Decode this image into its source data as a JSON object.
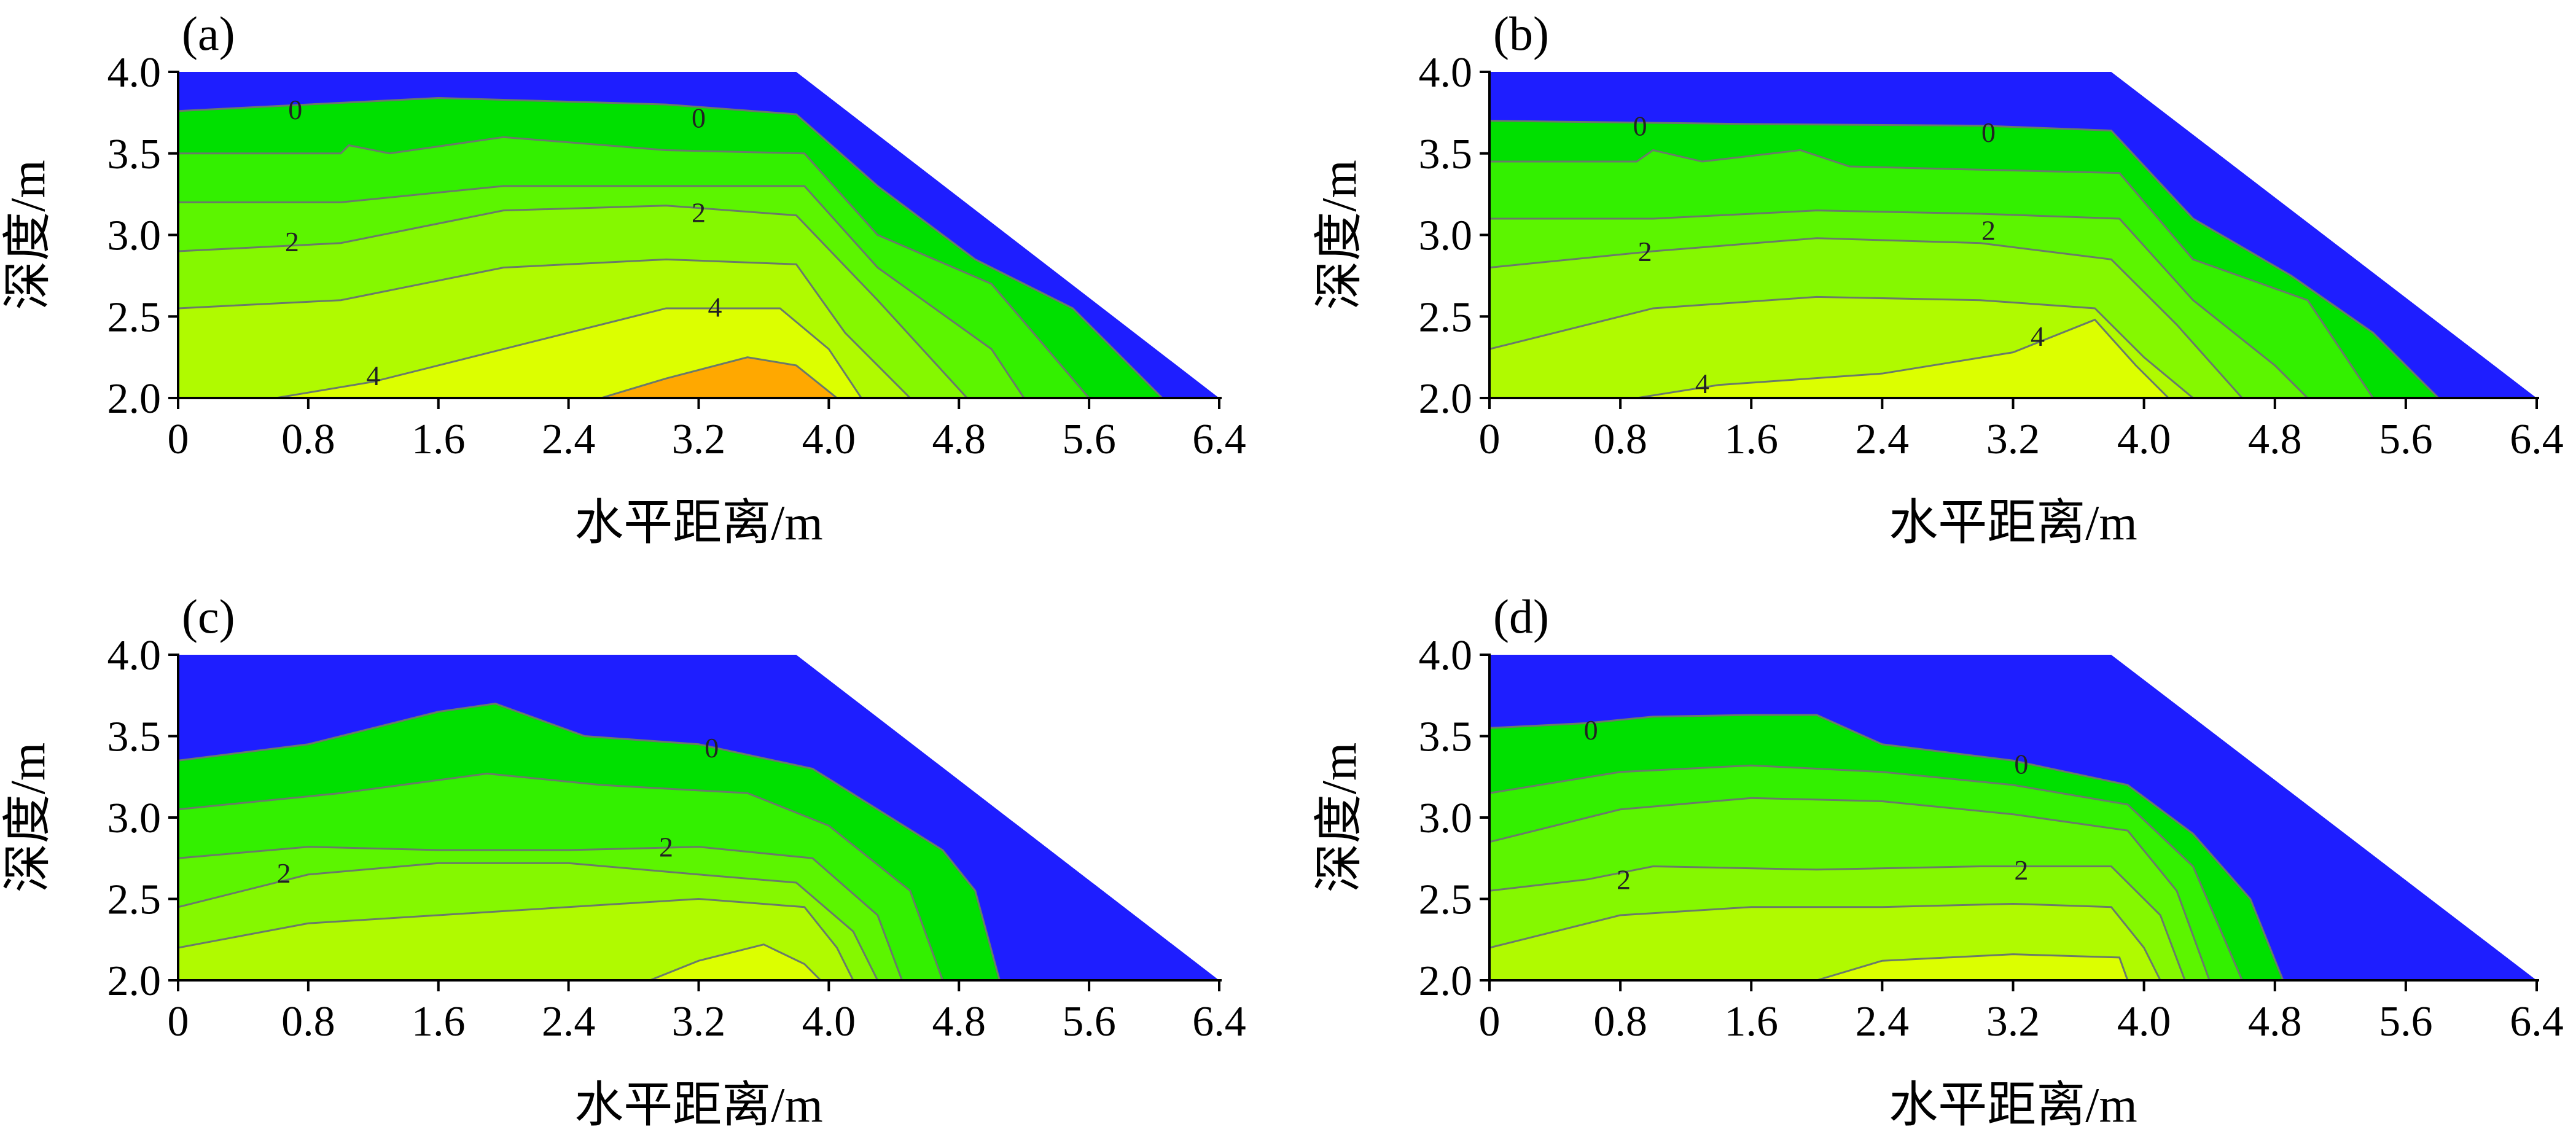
{
  "colors": {
    "band_blue": "#1e1eff",
    "band_green_1": "#00e000",
    "band_green_2": "#33f000",
    "band_green_3": "#5cf500",
    "band_green_4": "#85f800",
    "band_yellowgreen": "#b0fa00",
    "band_yellow": "#dcff00",
    "band_orange": "#ffa800",
    "contour_line": "#6a7a6a",
    "axis": "#000000"
  },
  "chart_data": [
    {
      "type": "contour",
      "panel_label": "(a)",
      "xlabel": "水平距离/m",
      "ylabel": "深度/m",
      "xlim": [
        0,
        6.4
      ],
      "ylim": [
        2.0,
        4.0
      ],
      "x_ticks": [
        "0",
        "0.8",
        "1.6",
        "2.4",
        "3.2",
        "4.0",
        "4.8",
        "5.6",
        "6.4"
      ],
      "y_ticks": [
        "2.0",
        "2.5",
        "3.0",
        "3.5",
        "4.0"
      ],
      "domain_top_edge_x": 3.8,
      "domain_bottom_edge_x": 6.4,
      "fill_bands": [
        {
          "color_key": "band_green_1",
          "line": [
            [
              0,
              3.76
            ],
            [
              1.6,
              3.84
            ],
            [
              3.0,
              3.8
            ],
            [
              3.8,
              3.74
            ],
            [
              4.3,
              3.3
            ],
            [
              4.9,
              2.85
            ],
            [
              5.5,
              2.55
            ],
            [
              6.05,
              2.0
            ]
          ]
        },
        {
          "color_key": "band_green_2",
          "line": [
            [
              0,
              3.5
            ],
            [
              1.0,
              3.5
            ],
            [
              1.05,
              3.55
            ],
            [
              1.3,
              3.5
            ],
            [
              2.0,
              3.6
            ],
            [
              3.0,
              3.52
            ],
            [
              3.85,
              3.5
            ],
            [
              4.3,
              3.0
            ],
            [
              5.0,
              2.7
            ],
            [
              5.6,
              2.0
            ]
          ]
        },
        {
          "color_key": "band_green_3",
          "line": [
            [
              0,
              3.2
            ],
            [
              1.0,
              3.2
            ],
            [
              2.0,
              3.3
            ],
            [
              3.0,
              3.3
            ],
            [
              3.85,
              3.3
            ],
            [
              4.3,
              2.8
            ],
            [
              5.0,
              2.3
            ],
            [
              5.2,
              2.0
            ]
          ]
        },
        {
          "color_key": "band_green_4",
          "line": [
            [
              0,
              2.9
            ],
            [
              1.0,
              2.95
            ],
            [
              2.0,
              3.15
            ],
            [
              3.0,
              3.18
            ],
            [
              3.8,
              3.12
            ],
            [
              4.3,
              2.6
            ],
            [
              4.85,
              2.0
            ]
          ]
        },
        {
          "color_key": "band_yellowgreen",
          "line": [
            [
              0,
              2.55
            ],
            [
              1.0,
              2.6
            ],
            [
              2.0,
              2.8
            ],
            [
              3.0,
              2.85
            ],
            [
              3.8,
              2.82
            ],
            [
              4.1,
              2.4
            ],
            [
              4.5,
              2.0
            ]
          ]
        },
        {
          "color_key": "band_yellow",
          "line": [
            [
              0.6,
              2.0
            ],
            [
              1.2,
              2.1
            ],
            [
              2.0,
              2.3
            ],
            [
              3.0,
              2.55
            ],
            [
              3.7,
              2.55
            ],
            [
              4.0,
              2.3
            ],
            [
              4.2,
              2.0
            ]
          ]
        },
        {
          "color_key": "band_orange",
          "line": [
            [
              2.6,
              2.0
            ],
            [
              3.0,
              2.12
            ],
            [
              3.5,
              2.25
            ],
            [
              3.8,
              2.2
            ],
            [
              4.05,
              2.0
            ]
          ]
        }
      ],
      "contour_labels": [
        {
          "text": "0",
          "x": 0.72,
          "y": 3.77
        },
        {
          "text": "0",
          "x": 3.2,
          "y": 3.72
        },
        {
          "text": "2",
          "x": 0.7,
          "y": 2.96
        },
        {
          "text": "2",
          "x": 3.2,
          "y": 3.14
        },
        {
          "text": "4",
          "x": 3.3,
          "y": 2.56
        },
        {
          "text": "4",
          "x": 1.2,
          "y": 2.14
        }
      ]
    },
    {
      "type": "contour",
      "panel_label": "(b)",
      "xlabel": "水平距离/m",
      "ylabel": "深度/m",
      "xlim": [
        0,
        6.4
      ],
      "ylim": [
        2.0,
        4.0
      ],
      "x_ticks": [
        "0",
        "0.8",
        "1.6",
        "2.4",
        "3.2",
        "4.0",
        "4.8",
        "5.6",
        "6.4"
      ],
      "y_ticks": [
        "2.0",
        "2.5",
        "3.0",
        "3.5",
        "4.0"
      ],
      "domain_top_edge_x": 3.8,
      "domain_bottom_edge_x": 6.4,
      "fill_bands": [
        {
          "color_key": "band_green_1",
          "line": [
            [
              0,
              3.7
            ],
            [
              1.6,
              3.68
            ],
            [
              3.0,
              3.67
            ],
            [
              3.8,
              3.64
            ],
            [
              4.3,
              3.1
            ],
            [
              4.9,
              2.75
            ],
            [
              5.4,
              2.4
            ],
            [
              5.8,
              2.0
            ]
          ]
        },
        {
          "color_key": "band_green_2",
          "line": [
            [
              0,
              3.45
            ],
            [
              0.9,
              3.45
            ],
            [
              1.0,
              3.52
            ],
            [
              1.3,
              3.45
            ],
            [
              1.9,
              3.52
            ],
            [
              2.2,
              3.42
            ],
            [
              3.0,
              3.4
            ],
            [
              3.85,
              3.38
            ],
            [
              4.3,
              2.85
            ],
            [
              5.0,
              2.6
            ],
            [
              5.4,
              2.0
            ]
          ]
        },
        {
          "color_key": "band_green_3",
          "line": [
            [
              0,
              3.1
            ],
            [
              1.0,
              3.1
            ],
            [
              2.0,
              3.15
            ],
            [
              3.0,
              3.13
            ],
            [
              3.85,
              3.1
            ],
            [
              4.3,
              2.6
            ],
            [
              4.8,
              2.2
            ],
            [
              5.0,
              2.0
            ]
          ]
        },
        {
          "color_key": "band_green_4",
          "line": [
            [
              0,
              2.8
            ],
            [
              1.0,
              2.9
            ],
            [
              2.0,
              2.98
            ],
            [
              3.0,
              2.95
            ],
            [
              3.8,
              2.85
            ],
            [
              4.2,
              2.45
            ],
            [
              4.6,
              2.0
            ]
          ]
        },
        {
          "color_key": "band_yellowgreen",
          "line": [
            [
              0,
              2.3
            ],
            [
              1.0,
              2.55
            ],
            [
              2.0,
              2.62
            ],
            [
              3.0,
              2.6
            ],
            [
              3.7,
              2.55
            ],
            [
              4.0,
              2.25
            ],
            [
              4.3,
              2.0
            ]
          ]
        },
        {
          "color_key": "band_yellow",
          "line": [
            [
              0.9,
              2.0
            ],
            [
              1.4,
              2.08
            ],
            [
              2.4,
              2.15
            ],
            [
              3.2,
              2.28
            ],
            [
              3.7,
              2.48
            ],
            [
              3.95,
              2.2
            ],
            [
              4.15,
              2.0
            ]
          ]
        }
      ],
      "contour_labels": [
        {
          "text": "0",
          "x": 0.92,
          "y": 3.67
        },
        {
          "text": "0",
          "x": 3.05,
          "y": 3.63
        },
        {
          "text": "2",
          "x": 0.95,
          "y": 2.9
        },
        {
          "text": "2",
          "x": 3.05,
          "y": 3.03
        },
        {
          "text": "4",
          "x": 3.35,
          "y": 2.38
        },
        {
          "text": "4",
          "x": 1.3,
          "y": 2.09
        }
      ]
    },
    {
      "type": "contour",
      "panel_label": "(c)",
      "xlabel": "水平距离/m",
      "ylabel": "深度/m",
      "xlim": [
        0,
        6.4
      ],
      "ylim": [
        2.0,
        4.0
      ],
      "x_ticks": [
        "0",
        "0.8",
        "1.6",
        "2.4",
        "3.2",
        "4.0",
        "4.8",
        "5.6",
        "6.4"
      ],
      "y_ticks": [
        "2.0",
        "2.5",
        "3.0",
        "3.5",
        "4.0"
      ],
      "domain_top_edge_x": 3.8,
      "domain_bottom_edge_x": 6.4,
      "fill_bands": [
        {
          "color_key": "band_green_1",
          "line": [
            [
              0,
              3.35
            ],
            [
              0.8,
              3.45
            ],
            [
              1.6,
              3.65
            ],
            [
              1.95,
              3.7
            ],
            [
              2.5,
              3.5
            ],
            [
              3.2,
              3.45
            ],
            [
              3.9,
              3.3
            ],
            [
              4.3,
              3.05
            ],
            [
              4.7,
              2.8
            ],
            [
              4.9,
              2.55
            ],
            [
              5.05,
              2.0
            ]
          ]
        },
        {
          "color_key": "band_green_2",
          "line": [
            [
              0,
              3.05
            ],
            [
              1.0,
              3.15
            ],
            [
              1.9,
              3.27
            ],
            [
              2.6,
              3.2
            ],
            [
              3.5,
              3.15
            ],
            [
              4.0,
              2.95
            ],
            [
              4.5,
              2.55
            ],
            [
              4.7,
              2.0
            ]
          ]
        },
        {
          "color_key": "band_green_3",
          "line": [
            [
              0,
              2.75
            ],
            [
              0.8,
              2.82
            ],
            [
              1.6,
              2.8
            ],
            [
              2.4,
              2.8
            ],
            [
              3.2,
              2.82
            ],
            [
              3.9,
              2.75
            ],
            [
              4.3,
              2.4
            ],
            [
              4.45,
              2.0
            ]
          ]
        },
        {
          "color_key": "band_green_4",
          "line": [
            [
              0,
              2.45
            ],
            [
              0.8,
              2.65
            ],
            [
              1.6,
              2.72
            ],
            [
              2.4,
              2.72
            ],
            [
              3.2,
              2.65
            ],
            [
              3.8,
              2.6
            ],
            [
              4.15,
              2.3
            ],
            [
              4.3,
              2.0
            ]
          ]
        },
        {
          "color_key": "band_yellowgreen",
          "line": [
            [
              0,
              2.2
            ],
            [
              0.8,
              2.35
            ],
            [
              1.6,
              2.4
            ],
            [
              2.4,
              2.45
            ],
            [
              3.2,
              2.5
            ],
            [
              3.85,
              2.45
            ],
            [
              4.05,
              2.2
            ],
            [
              4.15,
              2.0
            ]
          ]
        },
        {
          "color_key": "band_yellow",
          "line": [
            [
              2.9,
              2.0
            ],
            [
              3.2,
              2.12
            ],
            [
              3.6,
              2.22
            ],
            [
              3.85,
              2.1
            ],
            [
              3.95,
              2.0
            ]
          ]
        }
      ],
      "contour_labels": [
        {
          "text": "0",
          "x": 3.28,
          "y": 3.43
        },
        {
          "text": "2",
          "x": 0.65,
          "y": 2.66
        },
        {
          "text": "2",
          "x": 3.0,
          "y": 2.82
        }
      ]
    },
    {
      "type": "contour",
      "panel_label": "(d)",
      "xlabel": "水平距离/m",
      "ylabel": "深度/m",
      "xlim": [
        0,
        6.4
      ],
      "ylim": [
        2.0,
        4.0
      ],
      "x_ticks": [
        "0",
        "0.8",
        "1.6",
        "2.4",
        "3.2",
        "4.0",
        "4.8",
        "5.6",
        "6.4"
      ],
      "y_ticks": [
        "2.0",
        "2.5",
        "3.0",
        "3.5",
        "4.0"
      ],
      "domain_top_edge_x": 3.8,
      "domain_bottom_edge_x": 6.4,
      "fill_bands": [
        {
          "color_key": "band_green_1",
          "line": [
            [
              0,
              3.55
            ],
            [
              0.6,
              3.58
            ],
            [
              1.0,
              3.62
            ],
            [
              1.6,
              3.63
            ],
            [
              2.0,
              3.63
            ],
            [
              2.4,
              3.45
            ],
            [
              3.2,
              3.35
            ],
            [
              3.9,
              3.2
            ],
            [
              4.3,
              2.9
            ],
            [
              4.65,
              2.5
            ],
            [
              4.85,
              2.0
            ]
          ]
        },
        {
          "color_key": "band_green_2",
          "line": [
            [
              0,
              3.15
            ],
            [
              0.8,
              3.28
            ],
            [
              1.6,
              3.32
            ],
            [
              2.4,
              3.28
            ],
            [
              3.2,
              3.2
            ],
            [
              3.9,
              3.08
            ],
            [
              4.3,
              2.7
            ],
            [
              4.6,
              2.0
            ]
          ]
        },
        {
          "color_key": "band_green_3",
          "line": [
            [
              0,
              2.85
            ],
            [
              0.8,
              3.05
            ],
            [
              1.6,
              3.12
            ],
            [
              2.4,
              3.1
            ],
            [
              3.2,
              3.02
            ],
            [
              3.9,
              2.92
            ],
            [
              4.2,
              2.55
            ],
            [
              4.4,
              2.0
            ]
          ]
        },
        {
          "color_key": "band_green_4",
          "line": [
            [
              0,
              2.55
            ],
            [
              0.6,
              2.62
            ],
            [
              1.0,
              2.7
            ],
            [
              2.0,
              2.68
            ],
            [
              3.0,
              2.7
            ],
            [
              3.8,
              2.7
            ],
            [
              4.1,
              2.4
            ],
            [
              4.25,
              2.0
            ]
          ]
        },
        {
          "color_key": "band_yellowgreen",
          "line": [
            [
              0,
              2.2
            ],
            [
              0.8,
              2.4
            ],
            [
              1.6,
              2.45
            ],
            [
              2.4,
              2.45
            ],
            [
              3.2,
              2.47
            ],
            [
              3.8,
              2.45
            ],
            [
              4.0,
              2.2
            ],
            [
              4.1,
              2.0
            ]
          ]
        },
        {
          "color_key": "band_yellow",
          "line": [
            [
              2.0,
              2.0
            ],
            [
              2.4,
              2.12
            ],
            [
              3.2,
              2.16
            ],
            [
              3.85,
              2.14
            ],
            [
              3.9,
              2.0
            ]
          ]
        }
      ],
      "contour_labels": [
        {
          "text": "0",
          "x": 0.62,
          "y": 3.54
        },
        {
          "text": "0",
          "x": 3.25,
          "y": 3.33
        },
        {
          "text": "2",
          "x": 0.82,
          "y": 2.62
        },
        {
          "text": "2",
          "x": 3.25,
          "y": 2.68
        }
      ]
    }
  ]
}
